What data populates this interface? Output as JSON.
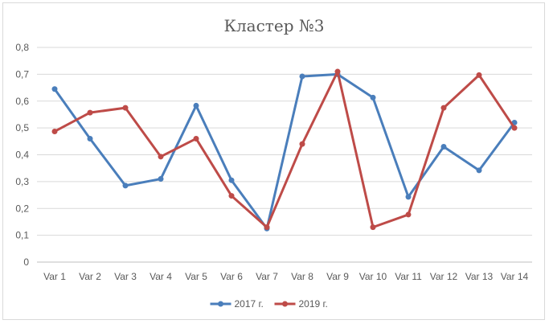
{
  "chart_data": {
    "type": "line",
    "title": "Кластер №3",
    "xlabel": "",
    "ylabel": "",
    "categories": [
      "Var 1",
      "Var 2",
      "Var 3",
      "Var 4",
      "Var 5",
      "Var 6",
      "Var 7",
      "Var 8",
      "Var 9",
      "Var 10",
      "Var 11",
      "Var 12",
      "Var 13",
      "Var 14"
    ],
    "ylim": [
      0,
      0.8
    ],
    "yticks": [
      "0",
      "0,1",
      "0,2",
      "0,3",
      "0,4",
      "0,5",
      "0,6",
      "0,7",
      "0,8"
    ],
    "grid": true,
    "legend_position": "bottom",
    "series": [
      {
        "name": "2017 г.",
        "color": "#4a7ebb",
        "values": [
          0.645,
          0.46,
          0.285,
          0.31,
          0.583,
          0.305,
          0.125,
          0.692,
          0.7,
          0.613,
          0.243,
          0.43,
          0.342,
          0.52
        ]
      },
      {
        "name": "2019 г.",
        "color": "#be4b48",
        "values": [
          0.487,
          0.557,
          0.575,
          0.393,
          0.46,
          0.247,
          0.13,
          0.44,
          0.71,
          0.13,
          0.177,
          0.575,
          0.697,
          0.5
        ]
      }
    ]
  }
}
